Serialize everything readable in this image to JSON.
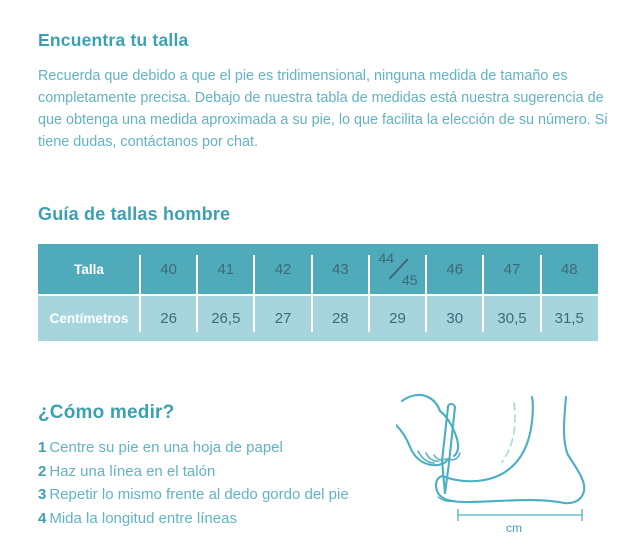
{
  "colors": {
    "heading": "#3ba1b2",
    "body_text": "#62b3c3",
    "step_number": "#3d9fb4",
    "table_header_bg": "#4faaba",
    "table_row_bg": "#a7d5dd",
    "table_value_text": "#3d6b77",
    "table_label_text": "#ffffff",
    "illustration_stroke": "#4aafc3",
    "illustration_light": "#a6d7df"
  },
  "intro": {
    "title": "Encuentra tu talla",
    "paragraph": "Recuerda que debido a que el pie es tridimensional, ninguna medida de tamaño es completamente precisa. Debajo de nuestra tabla de medidas está nuestra sugerencia de que obtenga una medida aproximada a su pie, lo que facilita la elección de su número. Si tiene dudas, contáctanos por chat."
  },
  "size_guide": {
    "title": "Guía de tallas hombre",
    "table": {
      "rows": [
        {
          "label": "Talla",
          "values": [
            "40",
            "41",
            "42",
            "43",
            "44/45",
            "46",
            "47",
            "48"
          ]
        },
        {
          "label": "Centímetros",
          "values": [
            "26",
            "26,5",
            "27",
            "28",
            "29",
            "30",
            "30,5",
            "31,5"
          ]
        }
      ]
    }
  },
  "how_to_measure": {
    "title": "¿Cómo medir?",
    "steps": [
      {
        "number": "1",
        "text": "Centre su pie en una hoja de papel"
      },
      {
        "number": "2",
        "text": "Haz una línea en el talón"
      },
      {
        "number": "3",
        "text": "Repetir lo mismo frente al dedo gordo del pie"
      },
      {
        "number": "4",
        "text": "Mida la longitud entre líneas"
      }
    ],
    "illustration_caption": "cm"
  }
}
